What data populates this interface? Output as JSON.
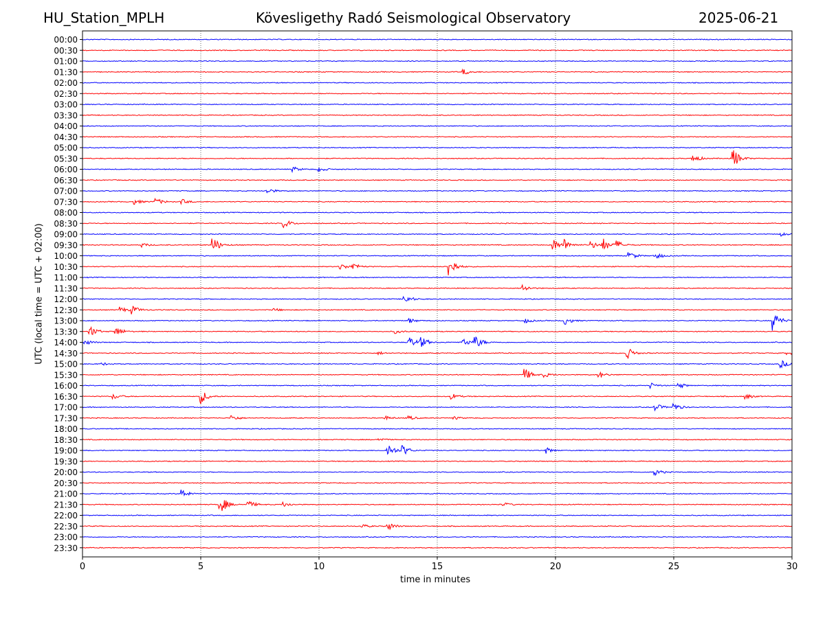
{
  "header": {
    "station": "HU_Station_MPLH",
    "observatory": "Kövesligethy Radó Seismological Observatory",
    "date": "2025-06-21"
  },
  "chart_data": {
    "type": "line",
    "subtype": "helicorder",
    "xlabel": "time in minutes",
    "ylabel": "UTC (local time = UTC + 02:00)",
    "xlim": [
      0,
      30
    ],
    "x_ticks": [
      0,
      5,
      10,
      15,
      20,
      25,
      30
    ],
    "grid": "vertical dotted lines at x ticks",
    "row_labels": [
      "00:00",
      "00:30",
      "01:00",
      "01:30",
      "02:00",
      "02:30",
      "03:00",
      "03:30",
      "04:00",
      "04:30",
      "05:00",
      "05:30",
      "06:00",
      "06:30",
      "07:00",
      "07:30",
      "08:00",
      "08:30",
      "09:00",
      "09:30",
      "10:00",
      "10:30",
      "11:00",
      "11:30",
      "12:00",
      "12:30",
      "13:00",
      "13:30",
      "14:00",
      "14:30",
      "15:00",
      "15:30",
      "16:00",
      "16:30",
      "17:00",
      "17:30",
      "18:00",
      "18:30",
      "19:00",
      "19:30",
      "20:00",
      "20:30",
      "21:00",
      "21:30",
      "22:00",
      "22:30",
      "23:00",
      "23:30"
    ],
    "colors": [
      "#0000ff",
      "#ff0000"
    ],
    "events": [
      {
        "row": "01:30",
        "minute": 16.1,
        "amplitude": 0.6
      },
      {
        "row": "05:30",
        "minute": 25.8,
        "amplitude": 0.9
      },
      {
        "row": "05:30",
        "minute": 27.5,
        "amplitude": 2.2
      },
      {
        "row": "06:00",
        "minute": 8.9,
        "amplitude": 0.5
      },
      {
        "row": "06:00",
        "minute": 10.0,
        "amplitude": 0.5
      },
      {
        "row": "07:00",
        "minute": 7.8,
        "amplitude": 0.6
      },
      {
        "row": "07:30",
        "minute": 2.2,
        "amplitude": 0.5
      },
      {
        "row": "07:30",
        "minute": 3.1,
        "amplitude": 0.7
      },
      {
        "row": "07:30",
        "minute": 4.2,
        "amplitude": 0.5
      },
      {
        "row": "08:30",
        "minute": 8.5,
        "amplitude": 1.0
      },
      {
        "row": "09:00",
        "minute": 29.5,
        "amplitude": 0.4
      },
      {
        "row": "09:30",
        "minute": 2.5,
        "amplitude": 0.4
      },
      {
        "row": "09:30",
        "minute": 5.5,
        "amplitude": 1.8
      },
      {
        "row": "09:30",
        "minute": 19.9,
        "amplitude": 1.3
      },
      {
        "row": "09:30",
        "minute": 20.4,
        "amplitude": 1.0
      },
      {
        "row": "09:30",
        "minute": 21.5,
        "amplitude": 0.8
      },
      {
        "row": "09:30",
        "minute": 22.0,
        "amplitude": 1.4
      },
      {
        "row": "09:30",
        "minute": 22.6,
        "amplitude": 0.8
      },
      {
        "row": "10:00",
        "minute": 23.1,
        "amplitude": 0.9
      },
      {
        "row": "10:00",
        "minute": 24.2,
        "amplitude": 0.8
      },
      {
        "row": "10:30",
        "minute": 10.9,
        "amplitude": 0.7
      },
      {
        "row": "10:30",
        "minute": 11.4,
        "amplitude": 0.8
      },
      {
        "row": "10:30",
        "minute": 15.5,
        "amplitude": 2.2
      },
      {
        "row": "11:30",
        "minute": 18.6,
        "amplitude": 0.8
      },
      {
        "row": "12:00",
        "minute": 13.6,
        "amplitude": 1.0
      },
      {
        "row": "12:30",
        "minute": 1.6,
        "amplitude": 0.6
      },
      {
        "row": "12:30",
        "minute": 2.1,
        "amplitude": 0.8
      },
      {
        "row": "12:30",
        "minute": 8.1,
        "amplitude": 0.3
      },
      {
        "row": "13:00",
        "minute": 13.8,
        "amplitude": 0.5
      },
      {
        "row": "13:00",
        "minute": 18.7,
        "amplitude": 0.5
      },
      {
        "row": "13:00",
        "minute": 20.4,
        "amplitude": 0.8
      },
      {
        "row": "13:00",
        "minute": 29.2,
        "amplitude": 2.0
      },
      {
        "row": "13:30",
        "minute": 0.3,
        "amplitude": 1.2
      },
      {
        "row": "13:30",
        "minute": 1.4,
        "amplitude": 1.1
      },
      {
        "row": "13:30",
        "minute": 13.2,
        "amplitude": 0.4
      },
      {
        "row": "14:00",
        "minute": 0.1,
        "amplitude": 0.6
      },
      {
        "row": "14:00",
        "minute": 13.8,
        "amplitude": 1.2
      },
      {
        "row": "14:00",
        "minute": 14.3,
        "amplitude": 1.1
      },
      {
        "row": "14:00",
        "minute": 16.1,
        "amplitude": 0.9
      },
      {
        "row": "14:00",
        "minute": 16.6,
        "amplitude": 1.3
      },
      {
        "row": "14:30",
        "minute": 12.5,
        "amplitude": 0.3
      },
      {
        "row": "14:30",
        "minute": 23.0,
        "amplitude": 1.4
      },
      {
        "row": "14:30",
        "minute": 29.8,
        "amplitude": 0.4
      },
      {
        "row": "15:00",
        "minute": 0.8,
        "amplitude": 0.3
      },
      {
        "row": "15:00",
        "minute": 29.5,
        "amplitude": 0.9
      },
      {
        "row": "15:30",
        "minute": 18.7,
        "amplitude": 1.3
      },
      {
        "row": "15:30",
        "minute": 19.5,
        "amplitude": 0.5
      },
      {
        "row": "15:30",
        "minute": 21.8,
        "amplitude": 0.8
      },
      {
        "row": "16:00",
        "minute": 24.0,
        "amplitude": 0.6
      },
      {
        "row": "16:00",
        "minute": 25.2,
        "amplitude": 0.6
      },
      {
        "row": "16:30",
        "minute": 1.3,
        "amplitude": 0.6
      },
      {
        "row": "16:30",
        "minute": 5.0,
        "amplitude": 1.5
      },
      {
        "row": "16:30",
        "minute": 15.6,
        "amplitude": 0.6
      },
      {
        "row": "16:30",
        "minute": 28.0,
        "amplitude": 0.6
      },
      {
        "row": "17:00",
        "minute": 24.2,
        "amplitude": 0.8
      },
      {
        "row": "17:00",
        "minute": 25.0,
        "amplitude": 0.8
      },
      {
        "row": "17:30",
        "minute": 6.3,
        "amplitude": 0.6
      },
      {
        "row": "17:30",
        "minute": 12.8,
        "amplitude": 0.4
      },
      {
        "row": "17:30",
        "minute": 13.8,
        "amplitude": 0.4
      },
      {
        "row": "17:30",
        "minute": 15.7,
        "amplitude": 0.3
      },
      {
        "row": "18:30",
        "minute": 12.5,
        "amplitude": 0.4
      },
      {
        "row": "19:00",
        "minute": 12.9,
        "amplitude": 1.5
      },
      {
        "row": "19:00",
        "minute": 13.5,
        "amplitude": 1.2
      },
      {
        "row": "19:00",
        "minute": 19.6,
        "amplitude": 0.6
      },
      {
        "row": "20:00",
        "minute": 24.2,
        "amplitude": 0.7
      },
      {
        "row": "21:00",
        "minute": 4.2,
        "amplitude": 0.9
      },
      {
        "row": "21:30",
        "minute": 5.8,
        "amplitude": 2.2
      },
      {
        "row": "21:30",
        "minute": 7.0,
        "amplitude": 0.8
      },
      {
        "row": "21:30",
        "minute": 8.5,
        "amplitude": 0.5
      },
      {
        "row": "21:30",
        "minute": 17.8,
        "amplitude": 0.4
      },
      {
        "row": "22:30",
        "minute": 11.8,
        "amplitude": 0.4
      },
      {
        "row": "22:30",
        "minute": 12.9,
        "amplitude": 0.9
      }
    ]
  }
}
